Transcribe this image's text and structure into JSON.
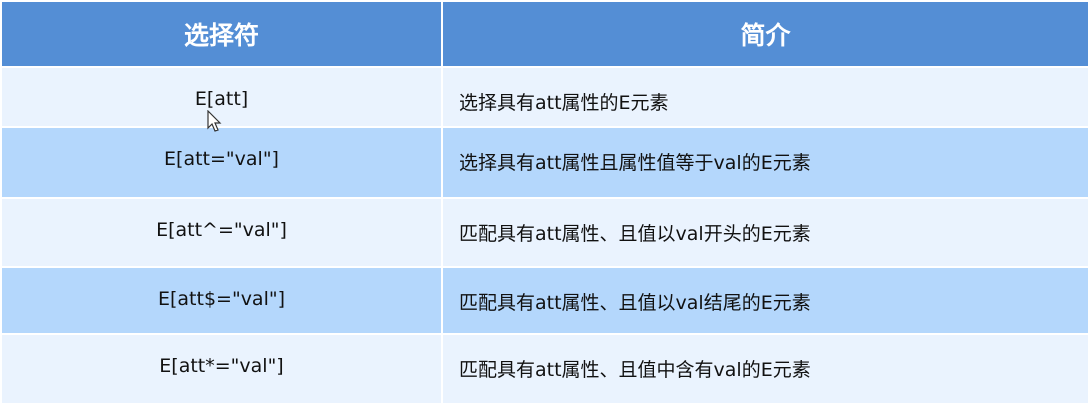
{
  "header": {
    "selector": "选择符",
    "description": "简介"
  },
  "rows": [
    {
      "selector": "E[att]",
      "description": "选择具有att属性的E元素"
    },
    {
      "selector": "E[att=\"val\"]",
      "description": "选择具有att属性且属性值等于val的E元素"
    },
    {
      "selector": "E[att^=\"val\"]",
      "description": "匹配具有att属性、且值以val开头的E元素"
    },
    {
      "selector": "E[att$=\"val\"]",
      "description": "匹配具有att属性、且值以val结尾的E元素"
    },
    {
      "selector": "E[att*=\"val\"]",
      "description": "匹配具有att属性、且值中含有val的E元素"
    }
  ],
  "colors": {
    "header": "#548ed5",
    "row_light": "#eaf3fe",
    "row_dark": "#b4d7fc"
  }
}
